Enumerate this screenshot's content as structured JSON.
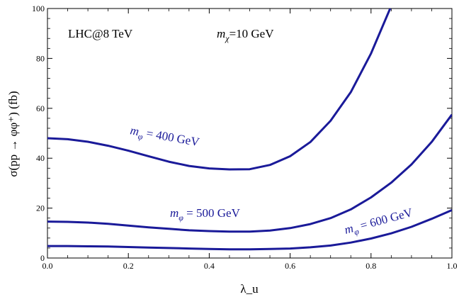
{
  "chart_data": {
    "type": "line",
    "xlabel": "λ_u",
    "ylabel": "σ(pp → φφ⁺)  (fb)",
    "xlim": [
      0.0,
      1.0
    ],
    "ylim": [
      0,
      100
    ],
    "xticks": [
      "0.0",
      "0.2",
      "0.4",
      "0.6",
      "0.8",
      "1.0"
    ],
    "yticks": [
      "0",
      "20",
      "40",
      "60",
      "80",
      "100"
    ],
    "grid": false,
    "line_color": "#1a1a99",
    "annotations": {
      "collider": "LHC@8 TeV",
      "mass_symbol": "m",
      "mass_sub": "χ",
      "mass_value": "=10 GeV"
    },
    "series": [
      {
        "name": "m_φ = 400 GeV",
        "label_sym": "m",
        "label_sub": "φ",
        "label_rest": " = 400 GeV",
        "x": [
          0.0,
          0.05,
          0.1,
          0.15,
          0.2,
          0.25,
          0.3,
          0.35,
          0.4,
          0.45,
          0.5,
          0.55,
          0.6,
          0.65,
          0.7,
          0.75,
          0.8,
          0.85
        ],
        "y": [
          48.0,
          47.6,
          46.6,
          45.0,
          43.0,
          40.8,
          38.6,
          36.9,
          35.9,
          35.5,
          35.6,
          37.3,
          40.8,
          46.5,
          55.0,
          66.5,
          82.0,
          101.0
        ]
      },
      {
        "name": "m_φ = 500 GeV",
        "label_sym": "m",
        "label_sub": "φ",
        "label_rest": " = 500 GeV",
        "x": [
          0.0,
          0.05,
          0.1,
          0.15,
          0.2,
          0.25,
          0.3,
          0.35,
          0.4,
          0.45,
          0.5,
          0.55,
          0.6,
          0.65,
          0.7,
          0.75,
          0.8,
          0.85,
          0.9,
          0.95,
          1.0
        ],
        "y": [
          14.6,
          14.5,
          14.2,
          13.7,
          13.0,
          12.3,
          11.7,
          11.1,
          10.8,
          10.6,
          10.6,
          11.0,
          12.0,
          13.6,
          16.0,
          19.5,
          24.3,
          30.2,
          37.5,
          46.5,
          57.5
        ]
      },
      {
        "name": "m_φ = 600 GeV",
        "label_sym": "m",
        "label_sub": "φ",
        "label_rest": " = 600 GeV",
        "x": [
          0.0,
          0.05,
          0.1,
          0.15,
          0.2,
          0.25,
          0.3,
          0.35,
          0.4,
          0.45,
          0.5,
          0.55,
          0.6,
          0.65,
          0.7,
          0.75,
          0.8,
          0.85,
          0.9,
          0.95,
          1.0
        ],
        "y": [
          4.8,
          4.8,
          4.7,
          4.6,
          4.4,
          4.2,
          4.0,
          3.8,
          3.6,
          3.5,
          3.5,
          3.6,
          3.8,
          4.3,
          5.0,
          6.2,
          7.8,
          9.9,
          12.5,
          15.7,
          19.2
        ]
      }
    ]
  }
}
